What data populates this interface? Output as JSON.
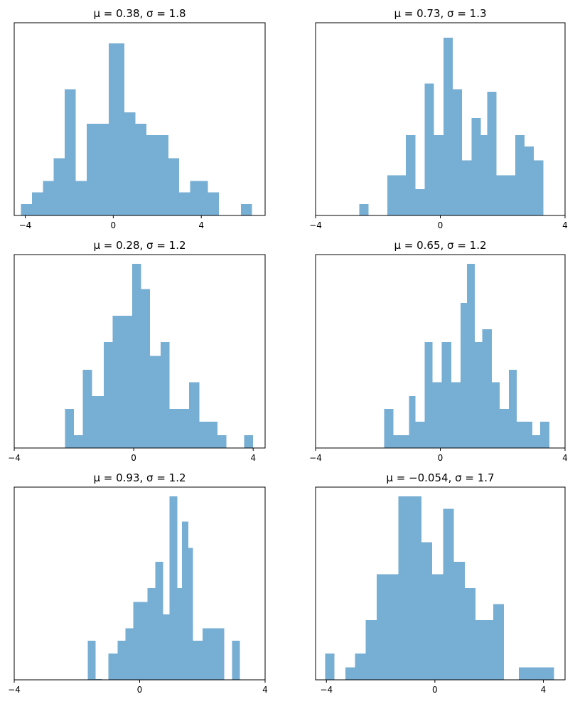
{
  "chart_data": [
    {
      "type": "bar",
      "title": "μ = 0.38,    σ = 1.8",
      "xlim": [
        -4.5,
        6.9
      ],
      "xticks": [
        -4,
        0,
        4
      ],
      "xtick_labels": [
        "−4",
        "0",
        "4"
      ],
      "ylim": [
        0,
        16.8
      ],
      "yticks_visible": false,
      "color": "#77aed3",
      "bins": [
        {
          "x0": -4.2,
          "x1": -3.7,
          "value": 1
        },
        {
          "x0": -3.7,
          "x1": -3.2,
          "value": 2
        },
        {
          "x0": -3.2,
          "x1": -2.7,
          "value": 3
        },
        {
          "x0": -2.7,
          "x1": -2.2,
          "value": 5
        },
        {
          "x0": -2.2,
          "x1": -1.7,
          "value": 11
        },
        {
          "x0": -1.7,
          "x1": -1.2,
          "value": 3
        },
        {
          "x0": -1.2,
          "x1": -0.2,
          "value": 8
        },
        {
          "x0": -0.2,
          "x1": 0.5,
          "value": 15
        },
        {
          "x0": 0.5,
          "x1": 1.0,
          "value": 9
        },
        {
          "x0": 1.0,
          "x1": 1.5,
          "value": 8
        },
        {
          "x0": 1.5,
          "x1": 2.5,
          "value": 7
        },
        {
          "x0": 2.5,
          "x1": 3.0,
          "value": 5
        },
        {
          "x0": 3.0,
          "x1": 3.5,
          "value": 2
        },
        {
          "x0": 3.5,
          "x1": 4.3,
          "value": 3
        },
        {
          "x0": 4.3,
          "x1": 4.8,
          "value": 2
        },
        {
          "x0": 5.8,
          "x1": 6.3,
          "value": 1
        }
      ]
    },
    {
      "type": "bar",
      "title": "μ = 0.73,    σ = 1.3",
      "xlim": [
        -4,
        4
      ],
      "xticks": [
        -4,
        0,
        4
      ],
      "xtick_labels": [
        "−4",
        "0",
        "4"
      ],
      "ylim": [
        0,
        16.8
      ],
      "yticks_visible": false,
      "color": "#77aed3",
      "bins": [
        {
          "x0": -2.6,
          "x1": -2.3,
          "value": 1
        },
        {
          "x0": -1.7,
          "x1": -1.1,
          "value": 3.5
        },
        {
          "x0": -1.1,
          "x1": -0.8,
          "value": 7
        },
        {
          "x0": -0.8,
          "x1": -0.5,
          "value": 2.3
        },
        {
          "x0": -0.5,
          "x1": -0.2,
          "value": 11.5
        },
        {
          "x0": -0.2,
          "x1": 0.1,
          "value": 7
        },
        {
          "x0": 0.1,
          "x1": 0.4,
          "value": 15.5
        },
        {
          "x0": 0.4,
          "x1": 0.7,
          "value": 11
        },
        {
          "x0": 0.7,
          "x1": 1.0,
          "value": 4.8
        },
        {
          "x0": 1.0,
          "x1": 1.3,
          "value": 8.5
        },
        {
          "x0": 1.3,
          "x1": 1.5,
          "value": 7
        },
        {
          "x0": 1.5,
          "x1": 1.8,
          "value": 10.8
        },
        {
          "x0": 1.8,
          "x1": 2.4,
          "value": 3.5
        },
        {
          "x0": 2.4,
          "x1": 2.7,
          "value": 7
        },
        {
          "x0": 2.7,
          "x1": 3.0,
          "value": 6
        },
        {
          "x0": 3.0,
          "x1": 3.3,
          "value": 4.8
        }
      ]
    },
    {
      "type": "bar",
      "title": "μ = 0.28,    σ = 1.2",
      "xlim": [
        -4,
        4.4
      ],
      "xticks": [
        -4,
        0,
        4
      ],
      "xtick_labels": [
        "−4",
        "0",
        "4"
      ],
      "ylim": [
        0,
        16.8
      ],
      "yticks_visible": false,
      "color": "#77aed3",
      "bins": [
        {
          "x0": -2.3,
          "x1": -2.0,
          "value": 3.4
        },
        {
          "x0": -2.0,
          "x1": -1.7,
          "value": 1.1
        },
        {
          "x0": -1.7,
          "x1": -1.4,
          "value": 6.8
        },
        {
          "x0": -1.4,
          "x1": -1.0,
          "value": 4.5
        },
        {
          "x0": -1.0,
          "x1": -0.7,
          "value": 9.2
        },
        {
          "x0": -0.7,
          "x1": -0.05,
          "value": 11.5
        },
        {
          "x0": -0.05,
          "x1": 0.25,
          "value": 16
        },
        {
          "x0": 0.25,
          "x1": 0.55,
          "value": 13.8
        },
        {
          "x0": 0.55,
          "x1": 0.9,
          "value": 8
        },
        {
          "x0": 0.9,
          "x1": 1.2,
          "value": 9.2
        },
        {
          "x0": 1.2,
          "x1": 1.85,
          "value": 3.4
        },
        {
          "x0": 1.85,
          "x1": 2.2,
          "value": 5.7
        },
        {
          "x0": 2.2,
          "x1": 2.8,
          "value": 2.3
        },
        {
          "x0": 2.8,
          "x1": 3.1,
          "value": 1.1
        },
        {
          "x0": 3.7,
          "x1": 4.0,
          "value": 1.1
        }
      ]
    },
    {
      "type": "bar",
      "title": "μ = 0.65,    σ = 1.2",
      "xlim": [
        -4,
        4
      ],
      "xticks": [
        -4,
        0,
        4
      ],
      "xtick_labels": [
        "−4",
        "0",
        "4"
      ],
      "ylim": [
        0,
        16.8
      ],
      "yticks_visible": false,
      "color": "#77aed3",
      "bins": [
        {
          "x0": -1.8,
          "x1": -1.5,
          "value": 3.4
        },
        {
          "x0": -1.5,
          "x1": -1.0,
          "value": 1.1
        },
        {
          "x0": -1.0,
          "x1": -0.8,
          "value": 4.5
        },
        {
          "x0": -0.8,
          "x1": -0.5,
          "value": 2.3
        },
        {
          "x0": -0.5,
          "x1": -0.25,
          "value": 9.2
        },
        {
          "x0": -0.25,
          "x1": 0.05,
          "value": 5.7
        },
        {
          "x0": 0.05,
          "x1": 0.35,
          "value": 9.2
        },
        {
          "x0": 0.35,
          "x1": 0.65,
          "value": 5.7
        },
        {
          "x0": 0.65,
          "x1": 0.85,
          "value": 12.6
        },
        {
          "x0": 0.85,
          "x1": 1.1,
          "value": 16
        },
        {
          "x0": 1.1,
          "x1": 1.35,
          "value": 9.2
        },
        {
          "x0": 1.35,
          "x1": 1.65,
          "value": 10.3
        },
        {
          "x0": 1.65,
          "x1": 1.9,
          "value": 5.7
        },
        {
          "x0": 1.9,
          "x1": 2.2,
          "value": 3.4
        },
        {
          "x0": 2.2,
          "x1": 2.45,
          "value": 6.8
        },
        {
          "x0": 2.45,
          "x1": 2.95,
          "value": 2.3
        },
        {
          "x0": 2.95,
          "x1": 3.2,
          "value": 1.1
        },
        {
          "x0": 3.2,
          "x1": 3.5,
          "value": 2.3
        }
      ]
    },
    {
      "type": "bar",
      "title": "μ = 0.93,    σ = 1.2",
      "xlim": [
        -4,
        4
      ],
      "xticks": [
        -4,
        0,
        4
      ],
      "xtick_labels": [
        "−4",
        "0",
        "4"
      ],
      "ylim": [
        0,
        16.8
      ],
      "yticks_visible": false,
      "color": "#77aed3",
      "bins": [
        {
          "x0": -1.65,
          "x1": -1.4,
          "value": 3.4
        },
        {
          "x0": -1.4,
          "x1": -1.2,
          "value": 0.05
        },
        {
          "x0": -1.0,
          "x1": -0.7,
          "value": 2.3
        },
        {
          "x0": -0.7,
          "x1": -0.45,
          "value": 3.4
        },
        {
          "x0": -0.45,
          "x1": -0.2,
          "value": 4.5
        },
        {
          "x0": -0.2,
          "x1": 0.25,
          "value": 6.8
        },
        {
          "x0": 0.25,
          "x1": 0.5,
          "value": 8
        },
        {
          "x0": 0.5,
          "x1": 0.75,
          "value": 10.3
        },
        {
          "x0": 0.75,
          "x1": 0.95,
          "value": 5.7
        },
        {
          "x0": 0.95,
          "x1": 1.2,
          "value": 16
        },
        {
          "x0": 1.2,
          "x1": 1.35,
          "value": 8
        },
        {
          "x0": 1.35,
          "x1": 1.55,
          "value": 13.8
        },
        {
          "x0": 1.55,
          "x1": 1.7,
          "value": 11.5
        },
        {
          "x0": 1.7,
          "x1": 2.0,
          "value": 3.4
        },
        {
          "x0": 2.0,
          "x1": 2.7,
          "value": 4.5
        },
        {
          "x0": 2.95,
          "x1": 3.2,
          "value": 3.4
        }
      ]
    },
    {
      "type": "bar",
      "title": "μ = −0.054,    σ = 1.7",
      "xlim": [
        -4.4,
        4.8
      ],
      "xticks": [
        -4,
        0,
        4
      ],
      "xtick_labels": [
        "−4",
        "0",
        "4"
      ],
      "ylim": [
        0,
        16.8
      ],
      "yticks_visible": false,
      "color": "#77aed3",
      "bins": [
        {
          "x0": -4.05,
          "x1": -3.7,
          "value": 2.3
        },
        {
          "x0": -3.3,
          "x1": -2.95,
          "value": 1.1
        },
        {
          "x0": -2.95,
          "x1": -2.55,
          "value": 2.3
        },
        {
          "x0": -2.55,
          "x1": -2.15,
          "value": 5.2
        },
        {
          "x0": -2.15,
          "x1": -1.35,
          "value": 9.2
        },
        {
          "x0": -1.35,
          "x1": -0.5,
          "value": 16
        },
        {
          "x0": -0.5,
          "x1": -0.1,
          "value": 12
        },
        {
          "x0": -0.1,
          "x1": 0.3,
          "value": 9.2
        },
        {
          "x0": 0.3,
          "x1": 0.7,
          "value": 14.9
        },
        {
          "x0": 0.7,
          "x1": 1.1,
          "value": 10.3
        },
        {
          "x0": 1.1,
          "x1": 1.5,
          "value": 8
        },
        {
          "x0": 1.5,
          "x1": 2.15,
          "value": 5.2
        },
        {
          "x0": 2.15,
          "x1": 2.55,
          "value": 6.6
        },
        {
          "x0": 3.1,
          "x1": 4.4,
          "value": 1.1
        }
      ]
    }
  ]
}
